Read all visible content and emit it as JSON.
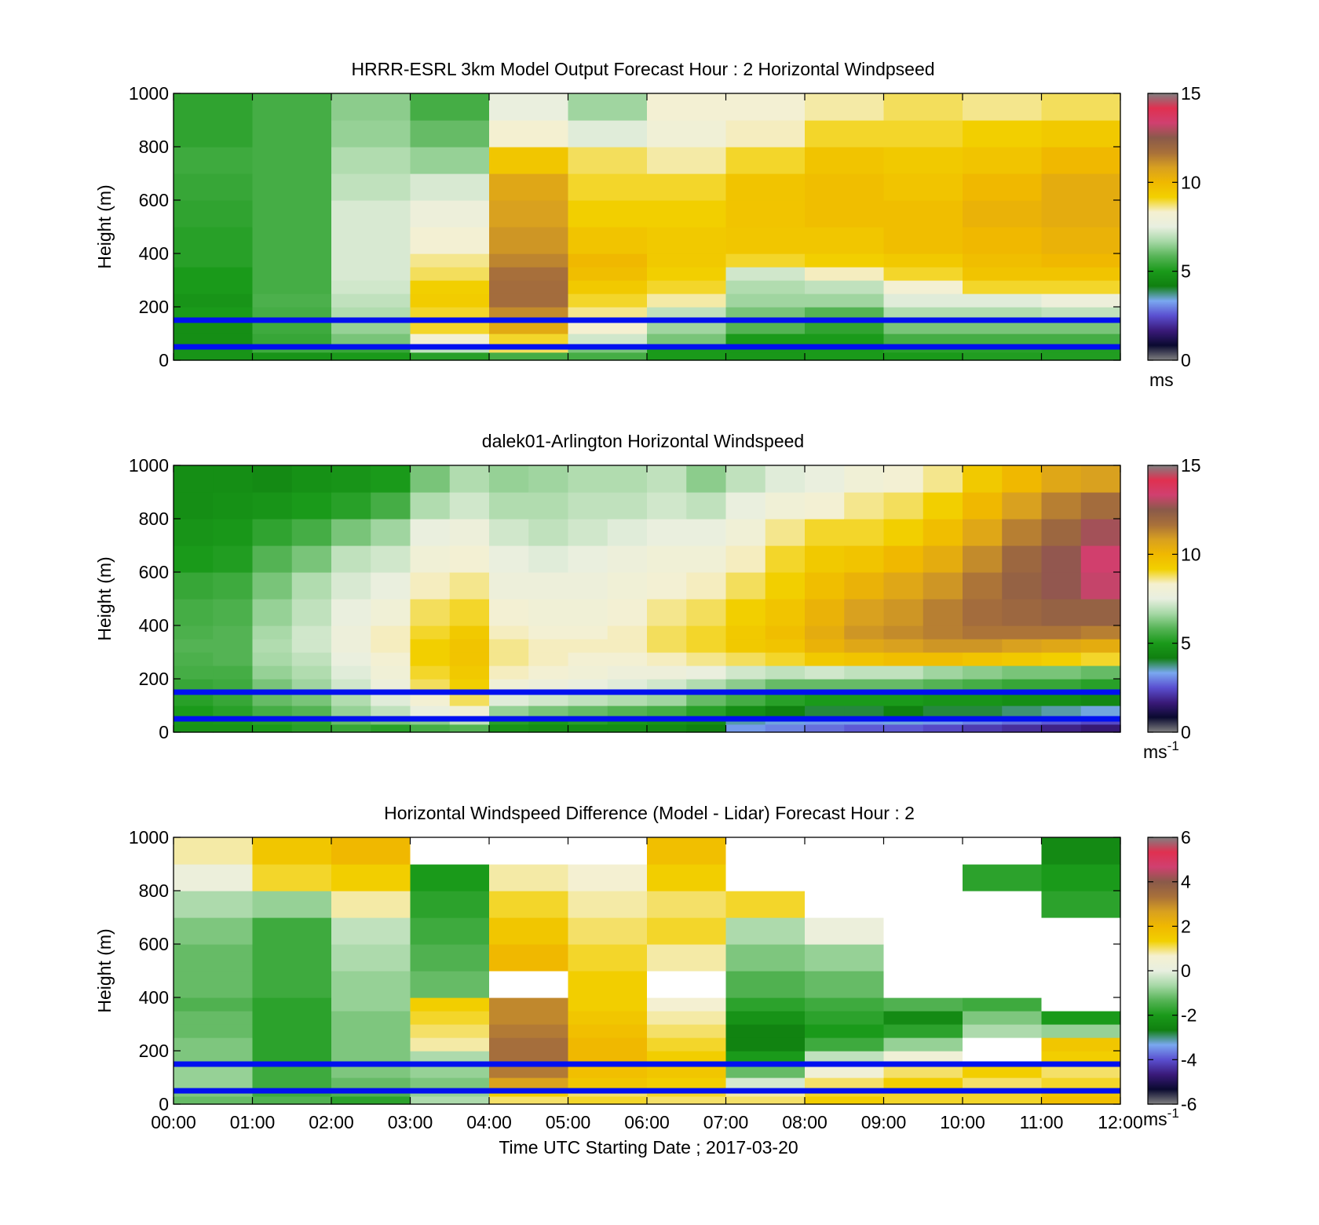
{
  "colormap": {
    "wind_stops": [
      "#808080",
      "#0a0a30",
      "#3a1a7a",
      "#5a4fd0",
      "#7aa8f0",
      "#108010",
      "#1a9a1a",
      "#56b456",
      "#a6d8a6",
      "#e8efe0",
      "#f5f0d0",
      "#f2d000",
      "#f0b800",
      "#d8a020",
      "#a8703a",
      "#8a5a4a",
      "#d04070",
      "#e03050",
      "#808080"
    ],
    "nan_color": "#ffffff"
  },
  "reference_lines": {
    "color": "#0010f0",
    "heights_m": [
      150,
      50
    ]
  },
  "xaxis": {
    "ticks": [
      "00:00",
      "01:00",
      "02:00",
      "03:00",
      "04:00",
      "05:00",
      "06:00",
      "07:00",
      "08:00",
      "09:00",
      "10:00",
      "11:00",
      "12:00"
    ],
    "label": "Time UTC  Starting Date ; 2017-03-20"
  },
  "chart_data": [
    {
      "type": "heatmap",
      "title": "HRRR-ESRL 3km Model Output   Forecast Hour : 2 Horizontal Windpseed",
      "ylabel": "Height (m)",
      "yticks": [
        "0",
        "200",
        "400",
        "600",
        "800",
        "1000"
      ],
      "ylim": [
        0,
        1000
      ],
      "xlim": [
        "00:00",
        "12:00"
      ],
      "colorbar": {
        "ticks": [
          "0",
          "5",
          "10",
          "15"
        ],
        "range": [
          0,
          15
        ],
        "unit": "ms",
        "unit_sup": ""
      },
      "levels_m": [
        0,
        30,
        60,
        100,
        150,
        200,
        250,
        300,
        350,
        400,
        500,
        600,
        700,
        800,
        900,
        1000
      ],
      "times": [
        "00:00",
        "01:00",
        "02:00",
        "03:00",
        "04:00",
        "05:00",
        "06:00",
        "07:00",
        "08:00",
        "09:00",
        "10:00",
        "11:00"
      ],
      "values_ms": [
        [
          4.8,
          4.8,
          4.6,
          4.6,
          5.0,
          4.8,
          5.0,
          5.0,
          5.2,
          5.2,
          5.3,
          5.4,
          5.5,
          5.3,
          5.3
        ],
        [
          4.8,
          5.5,
          5.4,
          5.5,
          5.6,
          5.7,
          5.6,
          5.6,
          5.6,
          5.6,
          5.6,
          5.6,
          5.6,
          5.6,
          5.6
        ],
        [
          5.0,
          5.4,
          6.2,
          6.5,
          6.8,
          7.0,
          7.2,
          7.3,
          7.3,
          7.3,
          7.3,
          7.0,
          6.8,
          6.5,
          6.4
        ],
        [
          5.2,
          7.0,
          8.2,
          9.0,
          9.0,
          9.3,
          9.2,
          8.8,
          8.6,
          8.2,
          7.8,
          7.3,
          6.5,
          6.0,
          5.6
        ],
        [
          5.6,
          8.8,
          9.0,
          10.5,
          11.2,
          11.8,
          11.8,
          11.7,
          11.3,
          11.0,
          10.8,
          10.6,
          9.5,
          8.3,
          7.6
        ],
        [
          5.6,
          6.2,
          7.2,
          8.3,
          8.6,
          9.0,
          9.4,
          9.8,
          10.0,
          9.6,
          9.2,
          9.0,
          8.8,
          7.4,
          6.6
        ],
        [
          5.0,
          5.0,
          6.2,
          6.6,
          7.0,
          8.5,
          9.0,
          9.2,
          9.4,
          9.4,
          9.2,
          9.0,
          8.5,
          8.0,
          8.2
        ],
        [
          4.9,
          4.9,
          5.0,
          5.8,
          6.2,
          6.6,
          6.8,
          7.2,
          9.0,
          9.5,
          9.6,
          9.6,
          9.0,
          8.4,
          8.2
        ],
        [
          5.0,
          5.0,
          5.0,
          5.3,
          5.8,
          6.6,
          7.0,
          8.4,
          9.2,
          9.5,
          9.8,
          9.8,
          9.6,
          9.0,
          8.5
        ],
        [
          5.0,
          5.2,
          5.6,
          6.2,
          6.8,
          7.4,
          8.2,
          9.0,
          9.4,
          9.8,
          9.8,
          9.6,
          9.4,
          9.0,
          8.8
        ],
        [
          5.1,
          5.2,
          5.6,
          6.2,
          6.8,
          7.4,
          9.0,
          9.6,
          9.8,
          10.0,
          10.2,
          10.0,
          9.6,
          9.2,
          8.6
        ],
        [
          5.1,
          5.1,
          5.6,
          6.2,
          7.0,
          7.8,
          9.0,
          9.6,
          10.0,
          10.2,
          10.4,
          10.4,
          10.0,
          9.4,
          8.8
        ]
      ]
    },
    {
      "type": "heatmap",
      "title": "dalek01-Arlington  Horizontal Windspeed",
      "ylabel": "Height (m)",
      "yticks": [
        "0",
        "200",
        "400",
        "600",
        "800",
        "1000"
      ],
      "ylim": [
        0,
        1000
      ],
      "xlim": [
        "00:00",
        "12:00"
      ],
      "colorbar": {
        "ticks": [
          "0",
          "5",
          "10",
          "15"
        ],
        "range": [
          0,
          15
        ],
        "unit": "ms",
        "unit_sup": "-1"
      },
      "levels_m": [
        0,
        30,
        60,
        100,
        150,
        200,
        250,
        300,
        350,
        400,
        500,
        600,
        700,
        800,
        900,
        1000
      ],
      "times": [
        "00:00",
        "00:30",
        "01:00",
        "01:30",
        "02:00",
        "02:30",
        "03:00",
        "03:30",
        "04:00",
        "04:30",
        "05:00",
        "05:30",
        "06:00",
        "06:30",
        "07:00",
        "07:30",
        "08:00",
        "08:30",
        "09:00",
        "09:30",
        "10:00",
        "10:30",
        "11:00",
        "11:30"
      ],
      "values_ms": [
        [
          4.8,
          4.9,
          5.0,
          5.2,
          5.4,
          5.6,
          5.7,
          5.8,
          5.7,
          5.6,
          5.4,
          5.0,
          4.8,
          4.6,
          4.6
        ],
        [
          4.8,
          5.0,
          5.2,
          5.4,
          5.5,
          5.6,
          5.8,
          5.8,
          5.8,
          5.7,
          5.5,
          5.1,
          4.9,
          4.7,
          4.6
        ],
        [
          5.0,
          5.2,
          5.6,
          6.0,
          6.2,
          6.5,
          6.7,
          6.8,
          6.7,
          6.5,
          6.2,
          5.8,
          5.3,
          4.8,
          4.5
        ],
        [
          5.2,
          5.3,
          5.8,
          6.2,
          6.6,
          6.8,
          7.0,
          7.2,
          7.2,
          7.0,
          6.8,
          6.2,
          5.6,
          5.0,
          4.7
        ],
        [
          5.4,
          6.0,
          6.5,
          6.8,
          7.2,
          7.4,
          7.6,
          7.8,
          7.8,
          7.6,
          7.3,
          7.0,
          6.2,
          5.2,
          4.8
        ],
        [
          5.2,
          6.2,
          7.0,
          7.4,
          7.8,
          8.0,
          8.2,
          8.4,
          8.4,
          8.0,
          7.6,
          7.2,
          6.6,
          5.6,
          5.0
        ],
        [
          5.6,
          6.4,
          7.6,
          8.2,
          8.8,
          9.0,
          9.2,
          9.2,
          9.0,
          8.8,
          8.4,
          8.0,
          7.6,
          6.8,
          6.2
        ],
        [
          5.8,
          7.0,
          8.0,
          8.8,
          9.2,
          9.4,
          9.6,
          9.6,
          9.4,
          9.0,
          8.6,
          8.2,
          7.8,
          7.2,
          6.8
        ],
        [
          4.8,
          5.2,
          6.5,
          7.4,
          8.0,
          8.4,
          8.6,
          8.6,
          8.4,
          8.2,
          7.8,
          7.6,
          7.2,
          6.8,
          6.5
        ],
        [
          4.6,
          5.0,
          6.2,
          7.2,
          7.8,
          8.2,
          8.4,
          8.4,
          8.2,
          8.0,
          7.8,
          7.4,
          7.0,
          6.8,
          6.6
        ],
        [
          4.6,
          5.2,
          6.0,
          7.0,
          7.6,
          8.0,
          8.2,
          8.4,
          8.2,
          8.0,
          7.8,
          7.6,
          7.2,
          7.0,
          6.8
        ],
        [
          4.6,
          5.0,
          5.8,
          6.8,
          7.4,
          7.8,
          8.2,
          8.4,
          8.4,
          8.2,
          8.0,
          7.8,
          7.4,
          7.0,
          6.8
        ],
        [
          4.5,
          4.8,
          5.6,
          6.6,
          7.2,
          7.8,
          8.4,
          8.8,
          8.8,
          8.6,
          8.2,
          8.0,
          7.6,
          7.2,
          7.0
        ],
        [
          4.2,
          4.6,
          5.2,
          6.0,
          6.8,
          7.6,
          8.6,
          9.0,
          9.0,
          8.8,
          8.4,
          8.0,
          7.6,
          7.0,
          6.4
        ],
        [
          3.2,
          3.6,
          4.6,
          5.6,
          6.4,
          7.2,
          8.8,
          9.4,
          9.4,
          9.2,
          8.8,
          8.4,
          8.0,
          7.6,
          7.0
        ],
        [
          3.0,
          3.4,
          4.2,
          5.2,
          6.0,
          7.0,
          9.0,
          9.6,
          9.8,
          9.6,
          9.2,
          9.0,
          8.6,
          8.0,
          7.4
        ],
        [
          2.8,
          3.2,
          4.0,
          5.0,
          6.0,
          7.2,
          9.4,
          10.2,
          10.4,
          10.2,
          9.8,
          9.4,
          9.0,
          8.2,
          7.6
        ],
        [
          2.6,
          3.2,
          4.0,
          5.0,
          6.0,
          7.0,
          9.6,
          10.6,
          11.0,
          10.8,
          10.2,
          9.6,
          9.0,
          8.6,
          8.0
        ],
        [
          2.6,
          3.4,
          4.2,
          5.0,
          6.0,
          7.0,
          9.8,
          10.8,
          11.2,
          11.0,
          10.6,
          10.0,
          9.2,
          8.8,
          8.2
        ],
        [
          2.4,
          3.2,
          4.0,
          4.8,
          5.8,
          6.6,
          9.8,
          11.0,
          11.4,
          11.4,
          11.0,
          10.4,
          9.8,
          9.2,
          8.6
        ],
        [
          2.2,
          3.0,
          4.0,
          4.8,
          5.6,
          6.4,
          9.6,
          11.0,
          11.6,
          11.8,
          11.6,
          11.2,
          10.6,
          10.0,
          9.4
        ],
        [
          2.0,
          2.8,
          3.8,
          4.6,
          5.4,
          6.2,
          9.4,
          10.8,
          11.6,
          12.0,
          12.2,
          12.0,
          11.4,
          10.8,
          10.0
        ],
        [
          1.8,
          2.6,
          3.6,
          4.6,
          5.4,
          6.2,
          9.2,
          10.6,
          11.6,
          12.2,
          12.6,
          12.6,
          12.0,
          11.4,
          10.6
        ],
        [
          1.6,
          2.4,
          3.4,
          4.4,
          5.2,
          6.0,
          9.0,
          10.4,
          11.4,
          12.2,
          13.2,
          13.4,
          12.8,
          11.8,
          10.8
        ]
      ]
    },
    {
      "type": "heatmap",
      "title": "Horizontal Windspeed Difference (Model - Lidar) Forecast Hour : 2",
      "ylabel": "Height (m)",
      "yticks": [
        "0",
        "200",
        "400",
        "600",
        "800",
        "1000"
      ],
      "ylim": [
        0,
        1000
      ],
      "xlim": [
        "00:00",
        "12:00"
      ],
      "colorbar": {
        "ticks": [
          "-6",
          "-4",
          "-2",
          "0",
          "2",
          "4",
          "6"
        ],
        "range": [
          -6,
          6
        ],
        "unit": "ms",
        "unit_sup": "-1"
      },
      "levels_m": [
        0,
        30,
        60,
        100,
        150,
        200,
        250,
        300,
        350,
        400,
        500,
        600,
        700,
        800,
        900,
        1000
      ],
      "times": [
        "00:00",
        "01:00",
        "02:00",
        "03:00",
        "04:00",
        "05:00",
        "06:00",
        "07:00",
        "08:00",
        "09:00",
        "10:00",
        "11:00"
      ],
      "values_ms": [
        [
          -1.2,
          -1.0,
          -0.8,
          -0.8,
          -1.0,
          -1.0,
          -1.2,
          -1.2,
          -1.4,
          -1.2,
          -1.2,
          -1.0,
          -0.6,
          0.2,
          0.8
        ],
        [
          -1.4,
          -1.6,
          -1.6,
          -1.6,
          -1.8,
          -1.8,
          -1.8,
          -1.8,
          -1.8,
          -1.6,
          -1.6,
          -1.6,
          -0.8,
          1.2,
          1.6
        ],
        [
          -1.8,
          -1.4,
          -1.2,
          -1.0,
          -1.0,
          -1.0,
          -1.0,
          -1.0,
          -0.8,
          -0.8,
          -0.6,
          -0.4,
          0.8,
          1.4,
          2.0
        ],
        [
          -0.6,
          -0.8,
          -1.0,
          -0.8,
          -0.6,
          0.8,
          1.0,
          1.2,
          1.4,
          -1.2,
          -1.4,
          -1.6,
          -1.8,
          -2.0,
          null
        ],
        [
          1.0,
          1.4,
          2.6,
          3.2,
          3.4,
          3.4,
          3.2,
          3.0,
          3.0,
          null,
          2.0,
          1.6,
          1.2,
          0.8,
          null
        ],
        [
          1.2,
          1.0,
          1.6,
          1.8,
          2.0,
          2.0,
          1.8,
          1.6,
          1.4,
          1.4,
          1.2,
          1.0,
          0.8,
          0.6,
          null
        ],
        [
          1.0,
          1.2,
          1.4,
          1.6,
          1.4,
          1.2,
          1.0,
          0.8,
          0.6,
          null,
          0.8,
          1.2,
          1.0,
          1.4,
          1.8
        ],
        [
          1.0,
          0.8,
          -0.2,
          -1.2,
          -2.0,
          -2.6,
          -2.6,
          -2.2,
          -1.8,
          -1.4,
          -1.0,
          -0.6,
          1.2,
          null,
          null
        ],
        [
          1.4,
          1.2,
          1.0,
          0.4,
          -0.4,
          -1.6,
          -2.0,
          -1.8,
          -1.6,
          -1.2,
          -0.8,
          0.2,
          null,
          null,
          null
        ],
        [
          1.2,
          1.2,
          1.4,
          1.0,
          0.4,
          -0.8,
          -1.8,
          -2.4,
          -1.4,
          null,
          null,
          null,
          null,
          null,
          null
        ],
        [
          1.2,
          1.2,
          1.0,
          1.4,
          null,
          null,
          -0.6,
          -1.0,
          -1.6,
          null,
          null,
          null,
          null,
          -1.8,
          null
        ],
        [
          1.8,
          1.6,
          1.2,
          1.0,
          1.4,
          1.6,
          -0.8,
          -2.0,
          null,
          null,
          null,
          null,
          -1.8,
          -2.0,
          -2.4
        ]
      ]
    }
  ]
}
